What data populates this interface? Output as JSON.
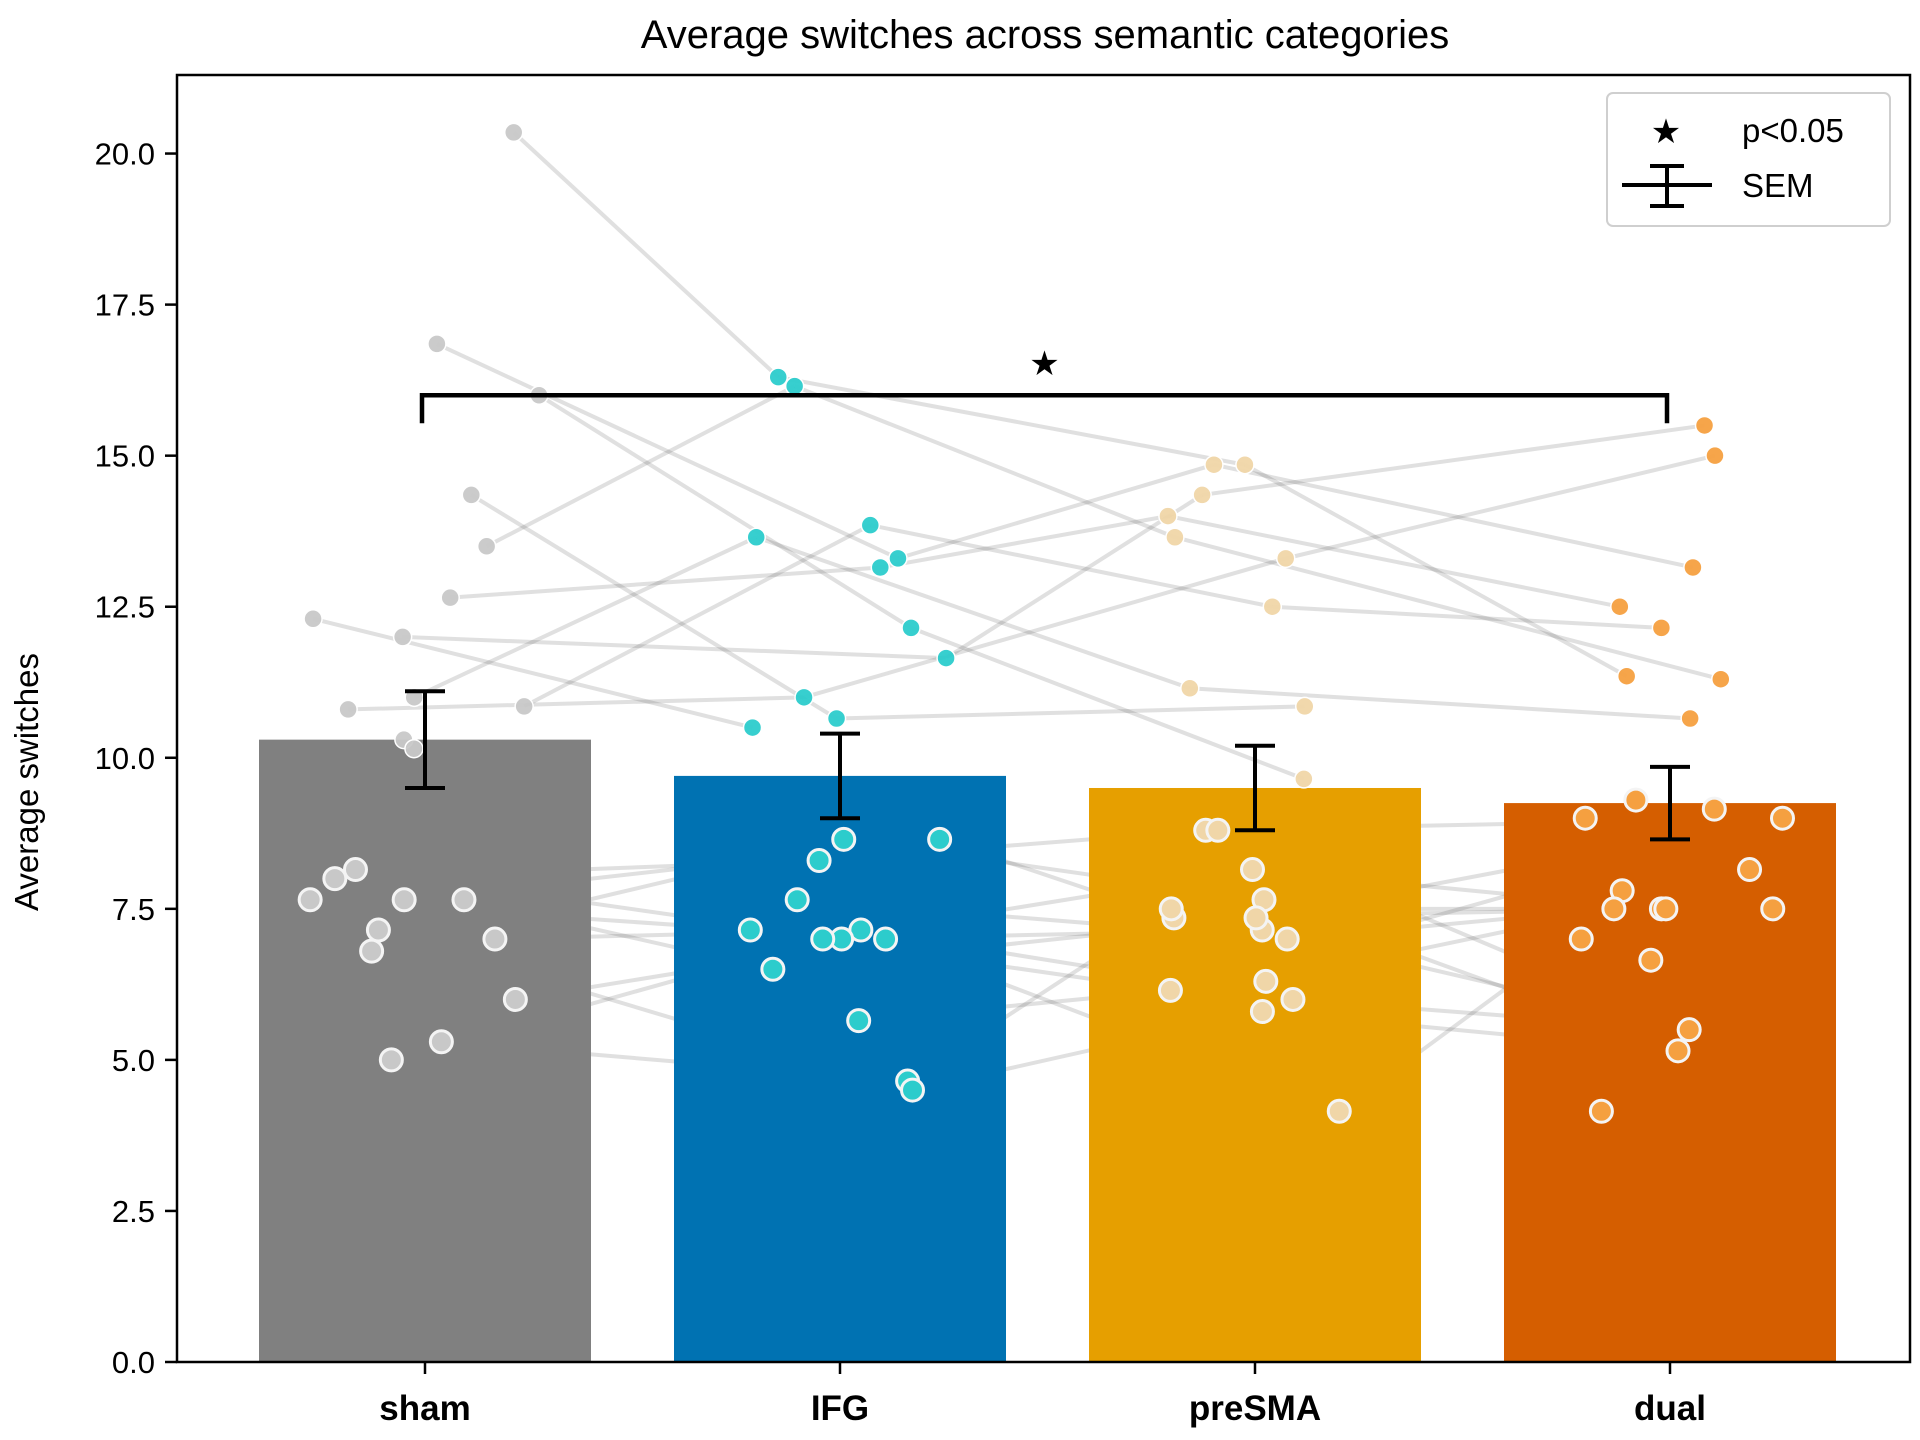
{
  "chart_data": {
    "type": "bar",
    "title": "Average switches across semantic categories",
    "xlabel": "",
    "ylabel": "Average switches",
    "ylim": [
      0,
      21.3
    ],
    "yticks": [
      "0.0",
      "2.5",
      "5.0",
      "7.5",
      "10.0",
      "12.5",
      "15.0",
      "17.5",
      "20.0"
    ],
    "categories": [
      "sham",
      "IFG",
      "preSMA",
      "dual"
    ],
    "values": [
      10.3,
      9.7,
      9.5,
      9.25
    ],
    "sem": [
      0.8,
      0.7,
      0.7,
      0.6
    ],
    "bar_colors": [
      "#808080",
      "#0072b2",
      "#e69f00",
      "#d55e00"
    ],
    "point_colors": [
      "#c8c8c8",
      "#2ccccc",
      "#f0d6a8",
      "#f5a040"
    ],
    "subjects_outline": [
      [
        7.65,
        7.65,
        7.65,
        8.0,
        7.15,
        7.0,
        8.15,
        5.3,
        5.0,
        6.8,
        6.0
      ],
      [
        8.65,
        8.65,
        7.15,
        7.15,
        7.0,
        7.0,
        6.5,
        5.65,
        4.65,
        8.3,
        7.65,
        7.0,
        4.5
      ],
      [
        8.8,
        7.35,
        7.15,
        7.0,
        7.65,
        7.35,
        8.15,
        6.0,
        6.3,
        5.8,
        6.15,
        7.5,
        8.8,
        4.15
      ],
      [
        9.0,
        9.3,
        9.0,
        7.8,
        7.5,
        7.5,
        6.65,
        7.0,
        5.5,
        4.15,
        8.15,
        7.5,
        7.5,
        9.15,
        5.15
      ]
    ],
    "subjects_upper": [
      [
        20.35,
        16.85,
        16.0,
        14.35,
        13.5,
        12.65,
        12.0,
        12.3,
        11.0,
        10.85,
        10.8,
        10.3,
        10.15
      ],
      [
        16.3,
        16.15,
        13.65,
        13.3,
        13.15,
        13.85,
        12.15,
        11.65,
        11.0,
        10.65,
        10.5
      ],
      [
        14.85,
        14.85,
        14.35,
        14.0,
        13.65,
        13.3,
        12.5,
        11.15,
        10.85,
        9.65
      ],
      [
        15.5,
        15.0,
        13.15,
        12.5,
        12.15,
        11.35,
        11.3,
        10.65
      ]
    ],
    "significance": {
      "from": "sham",
      "to": "dual",
      "y": 16.0,
      "symbol": "★"
    },
    "legend": {
      "position": "top-right",
      "entries": [
        {
          "marker": "star",
          "label": "p<0.05"
        },
        {
          "marker": "errorbar",
          "label": "SEM"
        }
      ]
    },
    "grid": false
  }
}
